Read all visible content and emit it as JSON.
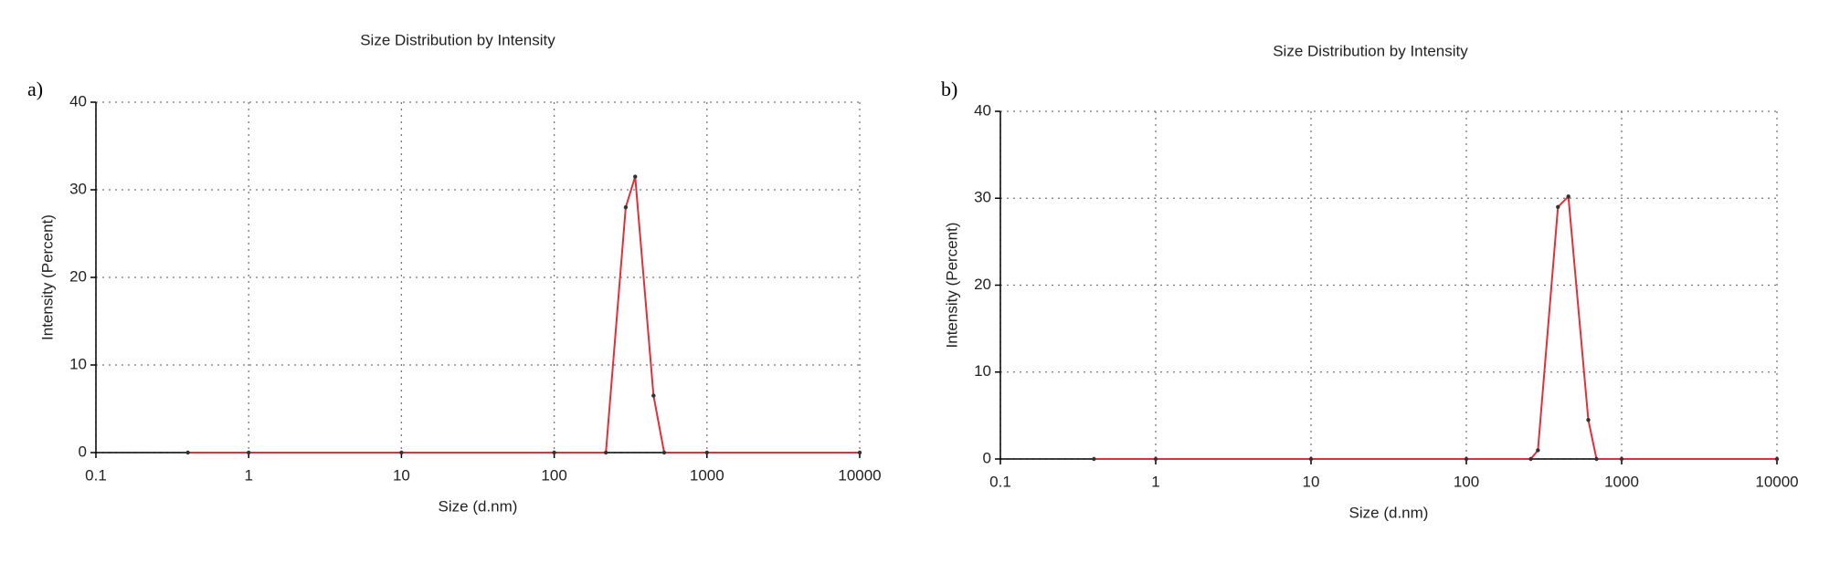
{
  "chart_data": [
    {
      "type": "line",
      "panel_label": "a)",
      "title": "Size Distribution by Intensity",
      "x_label": "Size (d.nm)",
      "y_label": "Intensity (Percent)",
      "x_scale": "log",
      "xlim": [
        0.1,
        10000
      ],
      "xticks": [
        0.1,
        1,
        10,
        100,
        1000,
        10000
      ],
      "ylim": [
        0,
        40
      ],
      "yticks": [
        0,
        10,
        20,
        30,
        40
      ],
      "grid": true,
      "x": [
        0.4,
        1,
        10,
        100,
        218,
        294,
        339,
        447,
        525,
        1000,
        10000
      ],
      "series": [
        {
          "color": "#e0303a",
          "values": [
            0,
            0,
            0,
            0,
            0,
            28,
            31.5,
            6.5,
            0,
            0,
            0
          ]
        }
      ]
    },
    {
      "type": "line",
      "panel_label": "b)",
      "title": "Size Distribution by Intensity",
      "x_label": "Size (d.nm)",
      "y_label": "Intensity (Percent)",
      "x_scale": "log",
      "xlim": [
        0.1,
        10000
      ],
      "xticks": [
        0.1,
        1,
        10,
        100,
        1000,
        10000
      ],
      "ylim": [
        0,
        40
      ],
      "yticks": [
        0,
        10,
        20,
        30,
        40
      ],
      "grid": true,
      "x": [
        0.4,
        1,
        10,
        100,
        260,
        289,
        389,
        454,
        610,
        689,
        1000,
        10000
      ],
      "series": [
        {
          "color": "#e0303a",
          "values": [
            0,
            0,
            0,
            0,
            0,
            1,
            29,
            30.2,
            4.5,
            0,
            0,
            0
          ]
        }
      ]
    }
  ]
}
